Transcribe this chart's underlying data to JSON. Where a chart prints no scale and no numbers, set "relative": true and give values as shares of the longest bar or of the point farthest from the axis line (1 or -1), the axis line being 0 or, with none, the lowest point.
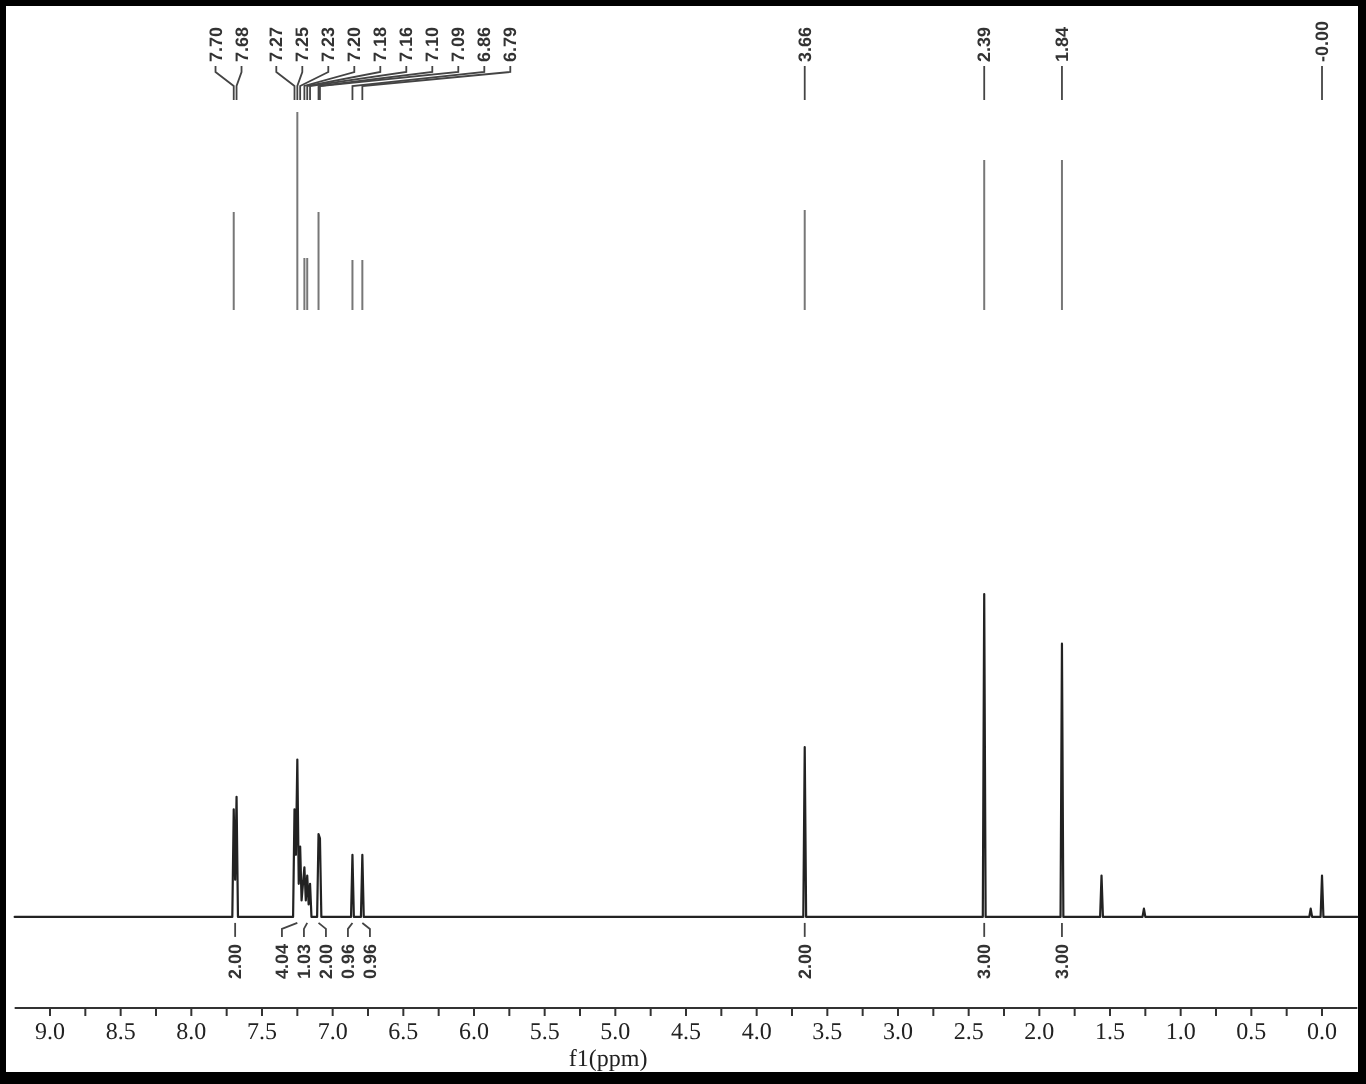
{
  "chart_data": {
    "type": "line",
    "relative": true,
    "xlabel": "f1(ppm)",
    "color": "#222222",
    "xlim": [
      9.25,
      -0.25
    ],
    "xticks": [
      {
        "value": 9,
        "label": "9.0"
      },
      {
        "value": 8.75,
        "label": null
      },
      {
        "value": 8.5,
        "label": "8.5"
      },
      {
        "value": 8.25,
        "label": null
      },
      {
        "value": 8,
        "label": "8.0"
      },
      {
        "value": 7.75,
        "label": null
      },
      {
        "value": 7.5,
        "label": "7.5"
      },
      {
        "value": 7.25,
        "label": null
      },
      {
        "value": 7,
        "label": "7.0"
      },
      {
        "value": 6.75,
        "label": null
      },
      {
        "value": 6.5,
        "label": "6.5"
      },
      {
        "value": 6.25,
        "label": null
      },
      {
        "value": 6,
        "label": "6.0"
      },
      {
        "value": 5.75,
        "label": null
      },
      {
        "value": 5.5,
        "label": "5.5"
      },
      {
        "value": 5.25,
        "label": null
      },
      {
        "value": 5,
        "label": "5.0"
      },
      {
        "value": 4.75,
        "label": null
      },
      {
        "value": 4.5,
        "label": "4.5"
      },
      {
        "value": 4.25,
        "label": null
      },
      {
        "value": 4,
        "label": "4.0"
      },
      {
        "value": 3.75,
        "label": null
      },
      {
        "value": 3.5,
        "label": "3.5"
      },
      {
        "value": 3.25,
        "label": null
      },
      {
        "value": 3,
        "label": "3.0"
      },
      {
        "value": 2.75,
        "label": null
      },
      {
        "value": 2.5,
        "label": "2.5"
      },
      {
        "value": 2.25,
        "label": null
      },
      {
        "value": 2,
        "label": "2.0"
      },
      {
        "value": 1.75,
        "label": null
      },
      {
        "value": 1.5,
        "label": "1.5"
      },
      {
        "value": 1.25,
        "label": null
      },
      {
        "value": 1,
        "label": "1.0"
      },
      {
        "value": 0.75,
        "label": null
      },
      {
        "value": 0.5,
        "label": "0.5"
      },
      {
        "value": 0.25,
        "label": null
      },
      {
        "value": 0,
        "label": "0.0"
      }
    ],
    "x": [
      9.25,
      7.71,
      7.7,
      7.69,
      7.68,
      7.67,
      7.28,
      7.27,
      7.26,
      7.25,
      7.24,
      7.23,
      7.22,
      7.2,
      7.19,
      7.18,
      7.17,
      7.16,
      7.15,
      7.11,
      7.1,
      7.09,
      7.08,
      6.87,
      6.86,
      6.85,
      6.8,
      6.79,
      6.78,
      3.67,
      3.66,
      3.65,
      2.4,
      2.39,
      2.38,
      1.85,
      1.84,
      1.83,
      1.57,
      1.56,
      1.55,
      1.27,
      1.26,
      1.25,
      0.09,
      0.08,
      0.07,
      0.01,
      0,
      -0.01,
      -0.25
    ],
    "values": [
      0.22,
      0.22,
      0.48,
      0.31,
      0.51,
      0.22,
      0.22,
      0.48,
      0.37,
      0.6,
      0.3,
      0.39,
      0.26,
      0.34,
      0.26,
      0.32,
      0.25,
      0.3,
      0.22,
      0.22,
      0.42,
      0.41,
      0.22,
      0.22,
      0.37,
      0.22,
      0.22,
      0.37,
      0.22,
      0.22,
      0.63,
      0.22,
      0.22,
      1,
      0.22,
      0.22,
      0.88,
      0.22,
      0.22,
      0.32,
      0.22,
      0.22,
      0.24,
      0.22,
      0.22,
      0.24,
      0.22,
      0.22,
      0.32,
      0.22,
      0.22
    ],
    "annotations": [
      {
        "text": "7.70",
        "x": 7.7
      },
      {
        "text": "7.68",
        "x": 7.68
      },
      {
        "text": "7.27",
        "x": 7.27
      },
      {
        "text": "7.25",
        "x": 7.25
      },
      {
        "text": "7.23",
        "x": 7.23
      },
      {
        "text": "7.20",
        "x": 7.2
      },
      {
        "text": "7.18",
        "x": 7.18
      },
      {
        "text": "7.16",
        "x": 7.16
      },
      {
        "text": "7.10",
        "x": 7.1
      },
      {
        "text": "7.09",
        "x": 7.09
      },
      {
        "text": "6.86",
        "x": 6.86
      },
      {
        "text": "6.79",
        "x": 6.79
      },
      {
        "text": "3.66",
        "x": 3.66
      },
      {
        "text": "2.39",
        "x": 2.39
      },
      {
        "text": "1.84",
        "x": 1.84
      },
      {
        "text": "-0.00",
        "x": 0
      },
      {
        "text": "2.00",
        "x": 7.69,
        "y": 0.22
      },
      {
        "text": "4.04",
        "x": 7.25,
        "y": 0.22
      },
      {
        "text": "1.03",
        "x": 7.18,
        "y": 0.22
      },
      {
        "text": "2.00",
        "x": 7.1,
        "y": 0.22
      },
      {
        "text": "0.96",
        "x": 6.86,
        "y": 0.22
      },
      {
        "text": "0.96",
        "x": 6.79,
        "y": 0.22
      },
      {
        "text": "2.00",
        "x": 3.66,
        "y": 0.22
      },
      {
        "text": "3.00",
        "x": 2.39,
        "y": 0.22
      },
      {
        "text": "3.00",
        "x": 1.84,
        "y": 0.22
      }
    ]
  }
}
